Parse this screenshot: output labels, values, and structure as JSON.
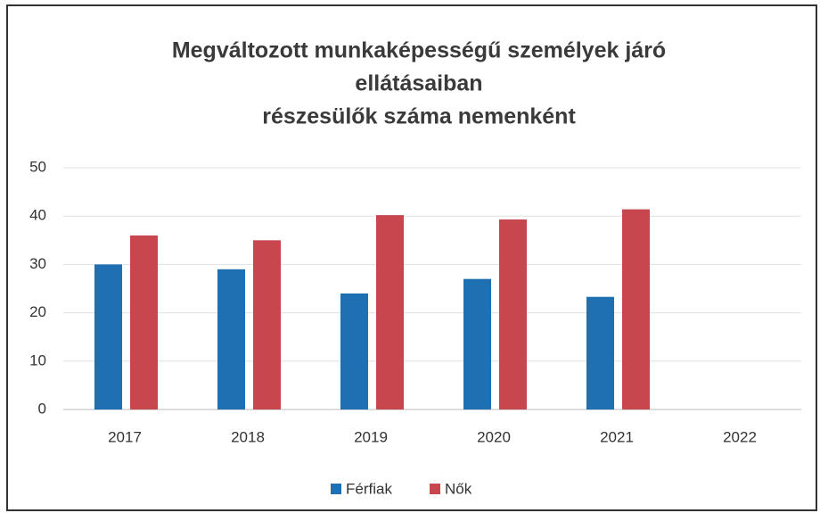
{
  "chart_data": {
    "type": "bar",
    "title": [
      "Megváltozott munkaképességű személyek járó",
      "ellátásaiban",
      "részesülők száma nemenként"
    ],
    "categories": [
      "2017",
      "2018",
      "2019",
      "2020",
      "2021",
      "2022"
    ],
    "series": [
      {
        "name": "Férfiak",
        "color": "#1f6fb3",
        "values": [
          30,
          29,
          24,
          27,
          23.3,
          null
        ]
      },
      {
        "name": "Nők",
        "color": "#c8474f",
        "values": [
          36,
          35,
          40.2,
          39.3,
          41.4,
          null
        ]
      }
    ],
    "ylim": [
      0,
      50
    ],
    "yticks": [
      0,
      10,
      20,
      30,
      40,
      50
    ],
    "grid": true,
    "legend": "bottom"
  }
}
